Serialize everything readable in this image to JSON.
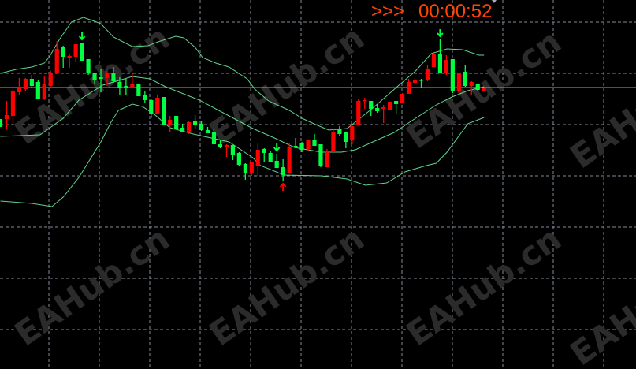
{
  "chart_data": {
    "type": "candlestick",
    "title": "",
    "xlabel": "",
    "ylabel": "",
    "grid": true,
    "background": "#000000",
    "colors": {
      "up": "#ff0000",
      "down": "#00ff40",
      "bands": "#5fd38d",
      "price_line": "#9aa4ae",
      "grid": "#7f8b99",
      "timer": "#ff4500"
    },
    "ohlc": [
      [
        149,
        149,
        139,
        139
      ],
      [
        149,
        172,
        137,
        154
      ],
      [
        153,
        187,
        143,
        184
      ],
      [
        183,
        201,
        179,
        188
      ],
      [
        187,
        201,
        185,
        200
      ],
      [
        200,
        205,
        188,
        191
      ],
      [
        196,
        198,
        175,
        175
      ],
      [
        175,
        203,
        173,
        194
      ],
      [
        191,
        210,
        190,
        208
      ],
      [
        207,
        248,
        207,
        238
      ],
      [
        240,
        242,
        214,
        228
      ],
      [
        227,
        231,
        214,
        229
      ],
      [
        228,
        244,
        221,
        244
      ],
      [
        246,
        246,
        223,
        223
      ],
      [
        225,
        225,
        205,
        207
      ],
      [
        208,
        208,
        193,
        198
      ],
      [
        202,
        213,
        183,
        200
      ],
      [
        201,
        210,
        191,
        207
      ],
      [
        207,
        215,
        195,
        197
      ],
      [
        196,
        202,
        180,
        189
      ],
      [
        191,
        200,
        179,
        189
      ],
      [
        188,
        208,
        188,
        194
      ],
      [
        194,
        194,
        178,
        178
      ],
      [
        180,
        184,
        170,
        173
      ],
      [
        173,
        175,
        150,
        156
      ],
      [
        156,
        180,
        155,
        176
      ],
      [
        177,
        177,
        142,
        142
      ],
      [
        142,
        153,
        132,
        148
      ],
      [
        153,
        153,
        136,
        137
      ],
      [
        138,
        143,
        132,
        133
      ],
      [
        132,
        146,
        130,
        145
      ],
      [
        146,
        154,
        137,
        142
      ],
      [
        143,
        147,
        134,
        135
      ],
      [
        135,
        139,
        131,
        131
      ],
      [
        132,
        137,
        117,
        117
      ],
      [
        117,
        123,
        112,
        113
      ],
      [
        113,
        117,
        101,
        116
      ],
      [
        116,
        116,
        97,
        104
      ],
      [
        106,
        107,
        90,
        91
      ],
      [
        92,
        93,
        72,
        80
      ],
      [
        81,
        94,
        77,
        94
      ],
      [
        90,
        118,
        77,
        110
      ],
      [
        111,
        112,
        94,
        106
      ],
      [
        106,
        108,
        95,
        95
      ],
      [
        96,
        105,
        87,
        87
      ],
      [
        88,
        98,
        70,
        78
      ],
      [
        80,
        118,
        80,
        113
      ],
      [
        115,
        125,
        112,
        113
      ],
      [
        119,
        120,
        107,
        110
      ],
      [
        111,
        122,
        108,
        122
      ],
      [
        122,
        130,
        115,
        115
      ],
      [
        117,
        117,
        88,
        89
      ],
      [
        88,
        111,
        88,
        109
      ],
      [
        107,
        136,
        106,
        133
      ],
      [
        136,
        140,
        127,
        130
      ],
      [
        132,
        133,
        112,
        120
      ],
      [
        123,
        141,
        117,
        140
      ],
      [
        141,
        175,
        141,
        172
      ],
      [
        172,
        176,
        162,
        173
      ],
      [
        172,
        172,
        153,
        162
      ],
      [
        163,
        168,
        157,
        159
      ],
      [
        162,
        167,
        144,
        164
      ],
      [
        161,
        171,
        161,
        171
      ],
      [
        172,
        172,
        156,
        168
      ],
      [
        169,
        182,
        169,
        181
      ],
      [
        181,
        200,
        181,
        196
      ],
      [
        195,
        201,
        193,
        198
      ],
      [
        199,
        200,
        189,
        198
      ],
      [
        198,
        217,
        197,
        213
      ],
      [
        215,
        232,
        215,
        231
      ],
      [
        231,
        250,
        207,
        207
      ],
      [
        208,
        230,
        205,
        224
      ],
      [
        225,
        225,
        182,
        184
      ],
      [
        184,
        207,
        181,
        207
      ],
      [
        209,
        218,
        190,
        191
      ],
      [
        191,
        197,
        179,
        196
      ],
      [
        193,
        194,
        184,
        186
      ],
      [
        185,
        189,
        185,
        188
      ]
    ],
    "bollinger": {
      "upper": [
        [
          0,
          207
        ],
        [
          2.5,
          212
        ],
        [
          5,
          215
        ],
        [
          7,
          220
        ],
        [
          7.8,
          228
        ],
        [
          9.4,
          250
        ],
        [
          11.3,
          272
        ],
        [
          13.2,
          278
        ],
        [
          15,
          273
        ],
        [
          16,
          270
        ],
        [
          18,
          253
        ],
        [
          21,
          241
        ],
        [
          23.5,
          242
        ],
        [
          25.1,
          247
        ],
        [
          27.9,
          254
        ],
        [
          29.2,
          252
        ],
        [
          31,
          240
        ],
        [
          32.2,
          227
        ],
        [
          34.3,
          220
        ],
        [
          36.4,
          215
        ],
        [
          39.3,
          200
        ],
        [
          40.5,
          187
        ],
        [
          42.7,
          172
        ],
        [
          46,
          160
        ],
        [
          48,
          150
        ],
        [
          50.2,
          142
        ],
        [
          52.3,
          135
        ],
        [
          55.2,
          137
        ],
        [
          56.8,
          147
        ],
        [
          59.3,
          163
        ],
        [
          63.6,
          193
        ],
        [
          66.1,
          210
        ],
        [
          68.6,
          232
        ],
        [
          71.1,
          238
        ],
        [
          73.6,
          237
        ],
        [
          76.2,
          230
        ],
        [
          77,
          230
        ]
      ],
      "middle": [
        [
          0,
          127
        ],
        [
          6.3,
          129
        ],
        [
          10,
          150
        ],
        [
          12.5,
          173
        ],
        [
          16.3,
          192
        ],
        [
          21,
          203
        ],
        [
          23.8,
          200
        ],
        [
          26.3,
          190
        ],
        [
          31.7,
          173
        ],
        [
          36.4,
          153
        ],
        [
          40.2,
          137
        ],
        [
          43.9,
          124
        ],
        [
          46.8,
          113
        ],
        [
          51.1,
          107
        ],
        [
          54.3,
          107
        ],
        [
          56.5,
          110
        ],
        [
          59.3,
          120
        ],
        [
          62.7,
          132
        ],
        [
          66.1,
          150
        ],
        [
          69.4,
          167
        ],
        [
          71.9,
          177
        ],
        [
          74.4,
          185
        ],
        [
          77,
          190
        ]
      ],
      "lower": [
        [
          0,
          45
        ],
        [
          5,
          42
        ],
        [
          8.2,
          38
        ],
        [
          10,
          50
        ],
        [
          12.5,
          75
        ],
        [
          16,
          120
        ],
        [
          17.6,
          145
        ],
        [
          18.8,
          160
        ],
        [
          21,
          168
        ],
        [
          22.6,
          165
        ],
        [
          24.5,
          155
        ],
        [
          27,
          138
        ],
        [
          30.7,
          130
        ],
        [
          36.4,
          120
        ],
        [
          40.2,
          100
        ],
        [
          41.4,
          90
        ],
        [
          45.2,
          78
        ],
        [
          51.1,
          77
        ],
        [
          55.2,
          73
        ],
        [
          58.1,
          65
        ],
        [
          61.5,
          68
        ],
        [
          64.4,
          82
        ],
        [
          67.8,
          90
        ],
        [
          69.4,
          93
        ],
        [
          71.1,
          107
        ],
        [
          74.4,
          143
        ],
        [
          77,
          151
        ]
      ]
    },
    "signals": [
      {
        "bar": 13,
        "type": "down-arrow",
        "color": "#00ff40"
      },
      {
        "bar": 44,
        "type": "down-arrow",
        "color": "#00ff40"
      },
      {
        "bar": 45,
        "type": "up-arrow",
        "color": "#ff0000"
      },
      {
        "bar": 70,
        "type": "down-arrow",
        "color": "#00ff40"
      }
    ],
    "current_price": 189
  },
  "timer": {
    "prefix": ">>>",
    "countdown": "00:00:52"
  },
  "watermark": "EAHub.cn"
}
